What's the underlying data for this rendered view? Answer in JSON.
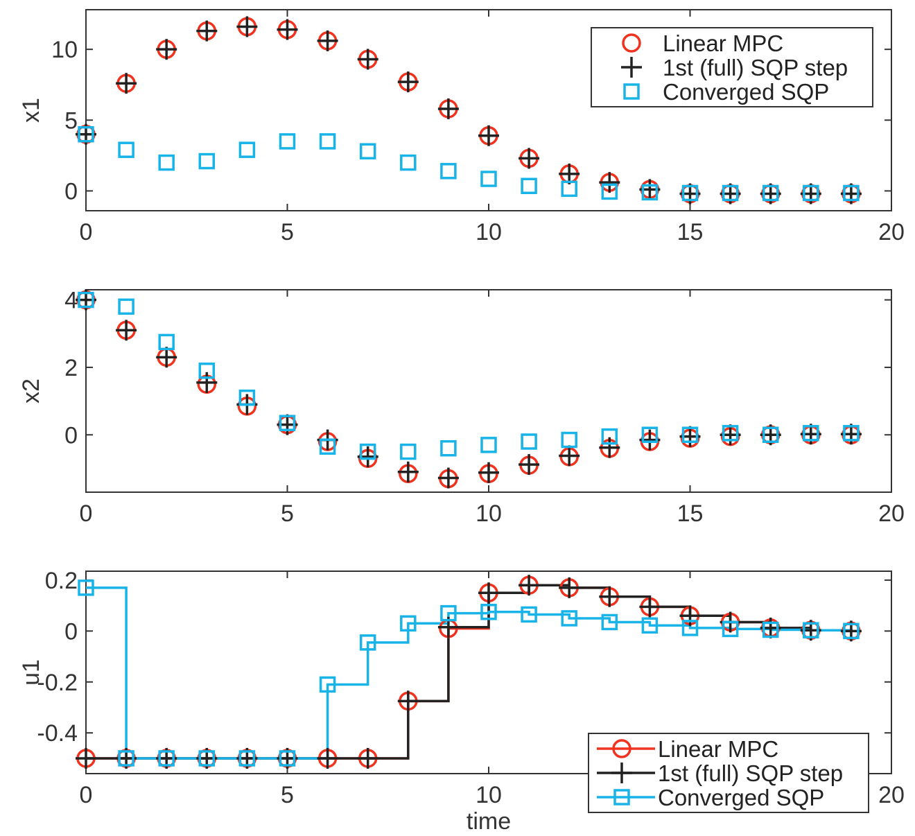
{
  "colors": {
    "linear_mpc": "#f0321e",
    "sqp_step": "#222222",
    "converged": "#18b4e8",
    "axes": "#333333"
  },
  "chart_data": [
    {
      "type": "scatter",
      "ylabel": "x1",
      "xlabel": "",
      "xlim": [
        0,
        20
      ],
      "ylim": [
        -1.4,
        12.8
      ],
      "xticks": [
        "0",
        "5",
        "10",
        "15",
        "20"
      ],
      "yticks": [
        "0",
        "5",
        "10"
      ],
      "legend": "top-right",
      "legend_style": "markers",
      "series": [
        {
          "name": "Linear MPC",
          "marker": "circle",
          "x": [
            0,
            1,
            2,
            3,
            4,
            5,
            6,
            7,
            8,
            9,
            10,
            11,
            12,
            13,
            14,
            15,
            16,
            17,
            18,
            19
          ],
          "values": [
            4.0,
            7.6,
            10.0,
            11.3,
            11.6,
            11.4,
            10.6,
            9.3,
            7.7,
            5.8,
            3.9,
            2.3,
            1.2,
            0.6,
            0.1,
            -0.2,
            -0.2,
            -0.2,
            -0.2,
            -0.2
          ]
        },
        {
          "name": "1st (full) SQP step",
          "marker": "plus",
          "x": [
            0,
            1,
            2,
            3,
            4,
            5,
            6,
            7,
            8,
            9,
            10,
            11,
            12,
            13,
            14,
            15,
            16,
            17,
            18,
            19
          ],
          "values": [
            4.0,
            7.6,
            10.0,
            11.3,
            11.6,
            11.4,
            10.6,
            9.3,
            7.7,
            5.8,
            3.9,
            2.3,
            1.2,
            0.6,
            0.1,
            -0.2,
            -0.2,
            -0.2,
            -0.2,
            -0.2
          ]
        },
        {
          "name": "Converged SQP",
          "marker": "square",
          "x": [
            0,
            1,
            2,
            3,
            4,
            5,
            6,
            7,
            8,
            9,
            10,
            11,
            12,
            13,
            14,
            15,
            16,
            17,
            18,
            19
          ],
          "values": [
            4.0,
            2.9,
            2.0,
            2.1,
            2.9,
            3.5,
            3.5,
            2.8,
            2.0,
            1.4,
            0.85,
            0.35,
            0.15,
            -0.05,
            -0.1,
            -0.15,
            -0.15,
            -0.15,
            -0.15,
            -0.15
          ]
        }
      ]
    },
    {
      "type": "scatter",
      "ylabel": "x2",
      "xlabel": "",
      "xlim": [
        0,
        20
      ],
      "ylim": [
        -1.7,
        4.3
      ],
      "xticks": [
        "0",
        "5",
        "10",
        "15",
        "20"
      ],
      "yticks": [
        "0",
        "2",
        "4"
      ],
      "series": [
        {
          "name": "Linear MPC",
          "marker": "circle",
          "x": [
            0,
            1,
            2,
            3,
            4,
            5,
            6,
            7,
            8,
            9,
            10,
            11,
            12,
            13,
            14,
            15,
            16,
            17,
            18,
            19
          ],
          "values": [
            4.0,
            3.1,
            2.3,
            1.5,
            0.85,
            0.3,
            -0.2,
            -0.7,
            -1.15,
            -1.3,
            -1.15,
            -0.9,
            -0.65,
            -0.4,
            -0.2,
            -0.1,
            -0.05,
            0.0,
            0.0,
            0.0
          ]
        },
        {
          "name": "1st (full) SQP step",
          "marker": "plus",
          "x": [
            0,
            1,
            2,
            3,
            4,
            5,
            6,
            7,
            8,
            9,
            10,
            11,
            12,
            13,
            14,
            15,
            16,
            17,
            18,
            19
          ],
          "values": [
            4.0,
            3.1,
            2.3,
            1.55,
            0.9,
            0.3,
            -0.15,
            -0.65,
            -1.1,
            -1.28,
            -1.12,
            -0.88,
            -0.62,
            -0.38,
            -0.15,
            -0.05,
            0.0,
            0.0,
            0.02,
            0.02
          ]
        },
        {
          "name": "Converged SQP",
          "marker": "square",
          "x": [
            0,
            1,
            2,
            3,
            4,
            5,
            6,
            7,
            8,
            9,
            10,
            11,
            12,
            13,
            14,
            15,
            16,
            17,
            18,
            19
          ],
          "values": [
            4.0,
            3.8,
            2.75,
            1.9,
            1.1,
            0.35,
            -0.35,
            -0.5,
            -0.5,
            -0.4,
            -0.3,
            -0.2,
            -0.15,
            -0.05,
            0.0,
            0.0,
            0.05,
            0.0,
            0.05,
            0.05
          ]
        }
      ]
    },
    {
      "type": "line",
      "ylabel": "u1",
      "xlabel": "time",
      "xlim": [
        0,
        20
      ],
      "ylim": [
        -0.56,
        0.235
      ],
      "xticks": [
        "0",
        "5",
        "10",
        "15",
        "20"
      ],
      "yticks": [
        "0.2",
        "0",
        "-0.2",
        "-0.4"
      ],
      "legend": "bottom-right",
      "legend_style": "lines",
      "step": true,
      "series": [
        {
          "name": "Linear MPC",
          "marker": "circle",
          "x": [
            0,
            1,
            2,
            3,
            4,
            5,
            6,
            7,
            8,
            9,
            10,
            11,
            12,
            13,
            14,
            15,
            16,
            17,
            18,
            19
          ],
          "values": [
            -0.5,
            -0.5,
            -0.5,
            -0.5,
            -0.5,
            -0.5,
            -0.5,
            -0.5,
            -0.275,
            0.01,
            0.15,
            0.18,
            0.17,
            0.135,
            0.095,
            0.06,
            0.035,
            0.012,
            0.003,
            0.0
          ]
        },
        {
          "name": "1st (full) SQP step",
          "marker": "plus",
          "x": [
            0,
            1,
            2,
            3,
            4,
            5,
            6,
            7,
            8,
            9,
            10,
            11,
            12,
            13,
            14,
            15,
            16,
            17,
            18,
            19
          ],
          "values": [
            -0.5,
            -0.5,
            -0.5,
            -0.5,
            -0.5,
            -0.5,
            -0.5,
            -0.5,
            -0.275,
            0.015,
            0.15,
            0.18,
            0.17,
            0.135,
            0.095,
            0.06,
            0.035,
            0.012,
            0.003,
            0.0
          ]
        },
        {
          "name": "Converged SQP",
          "marker": "square",
          "x": [
            0,
            1,
            2,
            3,
            4,
            5,
            6,
            7,
            8,
            9,
            10,
            11,
            12,
            13,
            14,
            15,
            16,
            17,
            18,
            19
          ],
          "values": [
            0.17,
            -0.5,
            -0.5,
            -0.5,
            -0.5,
            -0.5,
            -0.21,
            -0.045,
            0.03,
            0.07,
            0.075,
            0.065,
            0.05,
            0.035,
            0.022,
            0.012,
            0.008,
            0.005,
            0.003,
            0.0
          ]
        }
      ]
    }
  ]
}
